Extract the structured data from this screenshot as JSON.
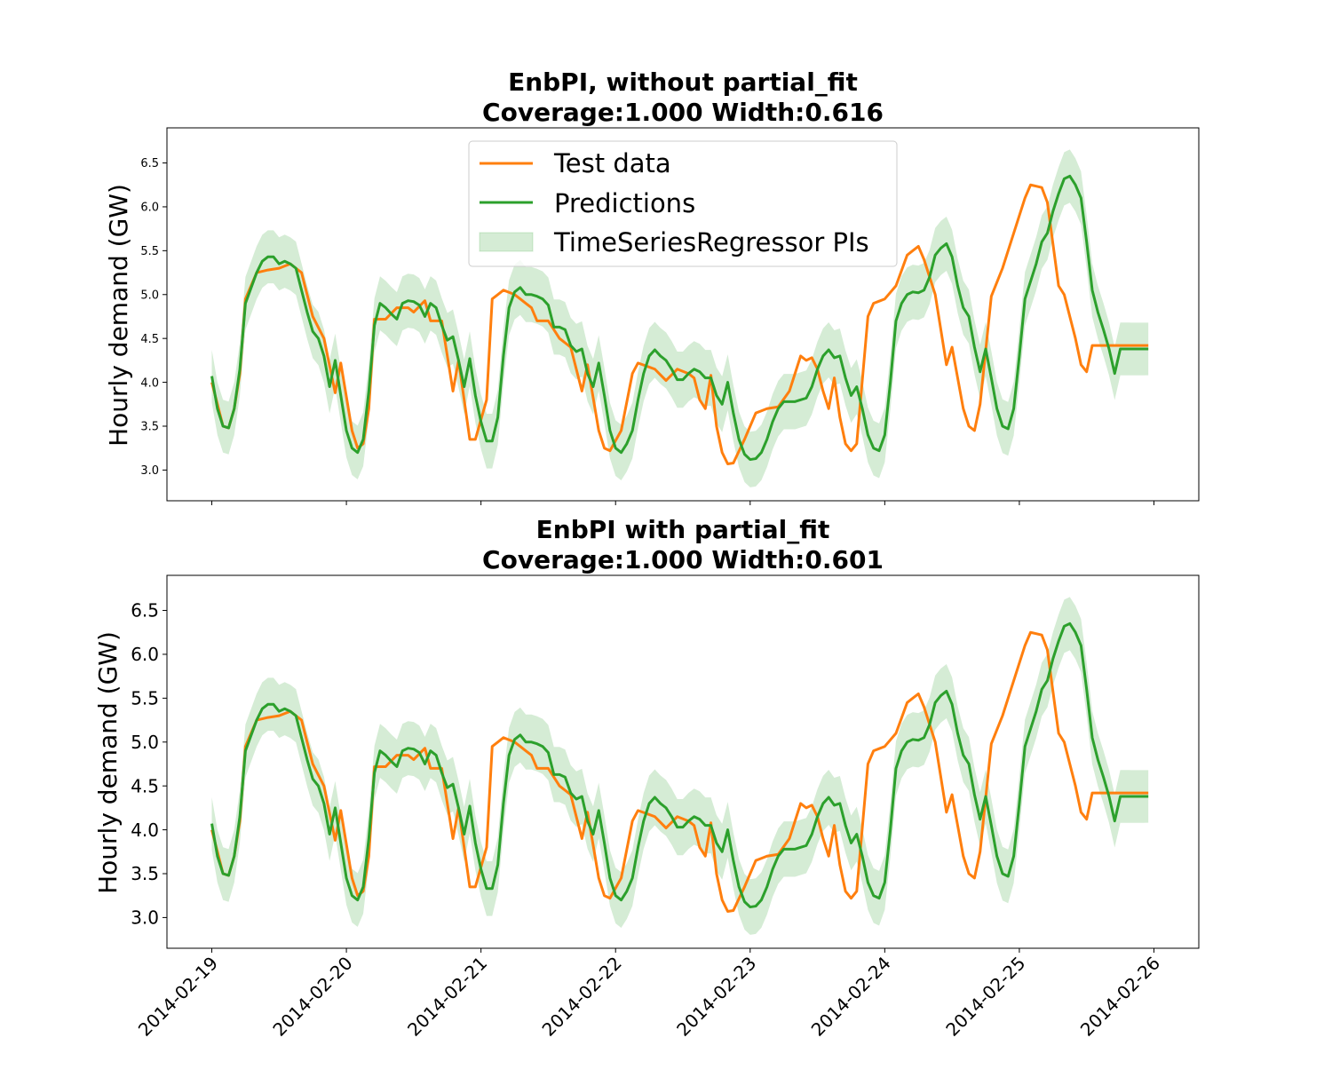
{
  "chart_data": [
    {
      "type": "line",
      "title_lines": [
        "EnbPI, without partial_fit",
        "Coverage:1.000  Width:0.616"
      ],
      "xlabel": "",
      "ylabel": "Hourly demand (GW)",
      "xlim": [
        "2014-02-18 16:00",
        "2014-02-26 08:00"
      ],
      "ylim": [
        2.65,
        6.9
      ],
      "yticks": [
        "3.0",
        "3.5",
        "4.0",
        "4.5",
        "5.0",
        "5.5",
        "6.0",
        "6.5"
      ],
      "ytick_values": [
        3.0,
        3.5,
        4.0,
        4.5,
        5.0,
        5.5,
        6.0,
        6.5
      ],
      "show_xticklabels": false,
      "legend": {
        "placement": "upper center",
        "entries": [
          "Test data",
          "Predictions",
          "TimeSeriesRegressor PIs"
        ]
      }
    },
    {
      "type": "line",
      "title_lines": [
        "EnbPI with partial_fit",
        "Coverage:1.000  Width:0.601"
      ],
      "xlabel": "",
      "ylabel": "Hourly demand (GW)",
      "xlim": [
        "2014-02-18 16:00",
        "2014-02-26 08:00"
      ],
      "ylim": [
        2.65,
        6.9
      ],
      "yticks": [
        "3.0",
        "3.5",
        "4.0",
        "4.5",
        "5.0",
        "5.5",
        "6.0",
        "6.5"
      ],
      "ytick_values": [
        3.0,
        3.5,
        4.0,
        4.5,
        5.0,
        5.5,
        6.0,
        6.5
      ],
      "xticks": [
        "2014-02-19",
        "2014-02-20",
        "2014-02-21",
        "2014-02-22",
        "2014-02-23",
        "2014-02-24",
        "2014-02-25",
        "2014-02-26"
      ],
      "show_xticklabels": true
    }
  ],
  "series_time": {
    "start": "2014-02-19 00:00",
    "end": "2014-02-25 23:00",
    "step_hours": 1
  },
  "colors": {
    "test_data": "#ff7f0e",
    "predictions": "#2ca02c",
    "interval_fill": "#2ca02c",
    "interval_alpha": 0.2
  },
  "series": {
    "test_data_anchors": [
      [
        "2014-02-19 00:00",
        4.0
      ],
      [
        "2014-02-19 02:00",
        3.5
      ],
      [
        "2014-02-19 03:00",
        3.48
      ],
      [
        "2014-02-19 04:00",
        3.7
      ],
      [
        "2014-02-19 05:00",
        4.1
      ],
      [
        "2014-02-19 06:00",
        4.95
      ],
      [
        "2014-02-19 08:00",
        5.25
      ],
      [
        "2014-02-19 10:00",
        5.28
      ],
      [
        "2014-02-19 12:00",
        5.3
      ],
      [
        "2014-02-19 14:00",
        5.35
      ],
      [
        "2014-02-19 16:00",
        5.25
      ],
      [
        "2014-02-19 18:00",
        4.75
      ],
      [
        "2014-02-19 20:00",
        4.5
      ],
      [
        "2014-02-19 22:00",
        3.88
      ],
      [
        "2014-02-19 23:00",
        4.22
      ],
      [
        "2014-02-20 01:00",
        3.45
      ],
      [
        "2014-02-20 02:00",
        3.25
      ],
      [
        "2014-02-20 03:00",
        3.3
      ],
      [
        "2014-02-20 04:00",
        3.7
      ],
      [
        "2014-02-20 05:00",
        4.72
      ],
      [
        "2014-02-20 07:00",
        4.72
      ],
      [
        "2014-02-20 09:00",
        4.85
      ],
      [
        "2014-02-20 11:00",
        4.85
      ],
      [
        "2014-02-20 12:00",
        4.8
      ],
      [
        "2014-02-20 14:00",
        4.93
      ],
      [
        "2014-02-20 15:00",
        4.7
      ],
      [
        "2014-02-20 17:00",
        4.7
      ],
      [
        "2014-02-20 19:00",
        3.9
      ],
      [
        "2014-02-20 20:00",
        4.25
      ],
      [
        "2014-02-20 22:00",
        3.35
      ],
      [
        "2014-02-20 23:00",
        3.35
      ],
      [
        "2014-02-21 01:00",
        3.8
      ],
      [
        "2014-02-21 02:00",
        4.95
      ],
      [
        "2014-02-21 04:00",
        5.05
      ],
      [
        "2014-02-21 06:00",
        5.0
      ],
      [
        "2014-02-21 09:00",
        4.85
      ],
      [
        "2014-02-21 10:00",
        4.7
      ],
      [
        "2014-02-21 12:00",
        4.7
      ],
      [
        "2014-02-21 14:00",
        4.5
      ],
      [
        "2014-02-21 16:00",
        4.4
      ],
      [
        "2014-02-21 18:00",
        3.9
      ],
      [
        "2014-02-21 19:00",
        4.2
      ],
      [
        "2014-02-21 21:00",
        3.45
      ],
      [
        "2014-02-21 22:00",
        3.25
      ],
      [
        "2014-02-21 23:00",
        3.22
      ],
      [
        "2014-02-22 01:00",
        3.45
      ],
      [
        "2014-02-22 03:00",
        4.1
      ],
      [
        "2014-02-22 04:00",
        4.22
      ],
      [
        "2014-02-22 07:00",
        4.15
      ],
      [
        "2014-02-22 09:00",
        4.02
      ],
      [
        "2014-02-22 11:00",
        4.15
      ],
      [
        "2014-02-22 13:00",
        4.1
      ],
      [
        "2014-02-22 14:00",
        4.05
      ],
      [
        "2014-02-22 15:00",
        3.8
      ],
      [
        "2014-02-22 16:00",
        3.7
      ],
      [
        "2014-02-22 17:00",
        4.08
      ],
      [
        "2014-02-22 18:00",
        3.5
      ],
      [
        "2014-02-22 19:00",
        3.2
      ],
      [
        "2014-02-22 20:00",
        3.07
      ],
      [
        "2014-02-22 21:00",
        3.08
      ],
      [
        "2014-02-22 23:00",
        3.35
      ],
      [
        "2014-02-23 01:00",
        3.65
      ],
      [
        "2014-02-23 03:00",
        3.7
      ],
      [
        "2014-02-23 05:00",
        3.72
      ],
      [
        "2014-02-23 07:00",
        3.9
      ],
      [
        "2014-02-23 09:00",
        4.3
      ],
      [
        "2014-02-23 10:00",
        4.25
      ],
      [
        "2014-02-23 11:00",
        4.28
      ],
      [
        "2014-02-23 12:00",
        4.15
      ],
      [
        "2014-02-23 13:00",
        3.9
      ],
      [
        "2014-02-23 14:00",
        3.7
      ],
      [
        "2014-02-23 15:00",
        4.05
      ],
      [
        "2014-02-23 16:00",
        3.6
      ],
      [
        "2014-02-23 17:00",
        3.3
      ],
      [
        "2014-02-23 18:00",
        3.22
      ],
      [
        "2014-02-23 19:00",
        3.3
      ],
      [
        "2014-02-23 21:00",
        4.75
      ],
      [
        "2014-02-23 22:00",
        4.9
      ],
      [
        "2014-02-24 00:00",
        4.95
      ],
      [
        "2014-02-24 02:00",
        5.1
      ],
      [
        "2014-02-24 04:00",
        5.45
      ],
      [
        "2014-02-24 06:00",
        5.55
      ],
      [
        "2014-02-24 07:00",
        5.4
      ],
      [
        "2014-02-24 09:00",
        5.0
      ],
      [
        "2014-02-24 11:00",
        4.2
      ],
      [
        "2014-02-24 12:00",
        4.4
      ],
      [
        "2014-02-24 14:00",
        3.7
      ],
      [
        "2014-02-24 15:00",
        3.5
      ],
      [
        "2014-02-24 16:00",
        3.45
      ],
      [
        "2014-02-24 17:00",
        3.75
      ],
      [
        "2014-02-24 19:00",
        4.98
      ],
      [
        "2014-02-24 21:00",
        5.3
      ],
      [
        "2014-02-24 23:00",
        5.7
      ],
      [
        "2014-02-25 01:00",
        6.1
      ],
      [
        "2014-02-25 02:00",
        6.25
      ],
      [
        "2014-02-25 04:00",
        6.22
      ],
      [
        "2014-02-25 05:00",
        6.05
      ],
      [
        "2014-02-25 07:00",
        5.1
      ],
      [
        "2014-02-25 08:00",
        5.0
      ],
      [
        "2014-02-25 10:00",
        4.5
      ],
      [
        "2014-02-25 11:00",
        4.2
      ],
      [
        "2014-02-25 12:00",
        4.12
      ],
      [
        "2014-02-25 13:00",
        4.42
      ]
    ],
    "predictions_anchors": [
      [
        "2014-02-19 00:00",
        4.07
      ],
      [
        "2014-02-19 01:00",
        3.7
      ],
      [
        "2014-02-19 02:00",
        3.5
      ],
      [
        "2014-02-19 03:00",
        3.48
      ],
      [
        "2014-02-19 04:00",
        3.7
      ],
      [
        "2014-02-19 05:00",
        4.15
      ],
      [
        "2014-02-19 06:00",
        4.9
      ],
      [
        "2014-02-19 08:00",
        5.25
      ],
      [
        "2014-02-19 09:00",
        5.38
      ],
      [
        "2014-02-19 10:00",
        5.43
      ],
      [
        "2014-02-19 11:00",
        5.43
      ],
      [
        "2014-02-19 12:00",
        5.35
      ],
      [
        "2014-02-19 13:00",
        5.38
      ],
      [
        "2014-02-19 14:00",
        5.35
      ],
      [
        "2014-02-19 15:00",
        5.3
      ],
      [
        "2014-02-19 16:00",
        5.05
      ],
      [
        "2014-02-19 17:00",
        4.8
      ],
      [
        "2014-02-19 18:00",
        4.58
      ],
      [
        "2014-02-19 19:00",
        4.5
      ],
      [
        "2014-02-19 20:00",
        4.3
      ],
      [
        "2014-02-19 21:00",
        3.95
      ],
      [
        "2014-02-19 22:00",
        4.25
      ],
      [
        "2014-02-19 23:00",
        3.85
      ],
      [
        "2014-02-20 00:00",
        3.45
      ],
      [
        "2014-02-20 01:00",
        3.25
      ],
      [
        "2014-02-20 02:00",
        3.2
      ],
      [
        "2014-02-20 03:00",
        3.35
      ],
      [
        "2014-02-20 04:00",
        3.9
      ],
      [
        "2014-02-20 05:00",
        4.65
      ],
      [
        "2014-02-20 06:00",
        4.9
      ],
      [
        "2014-02-20 07:00",
        4.85
      ],
      [
        "2014-02-20 08:00",
        4.78
      ],
      [
        "2014-02-20 09:00",
        4.72
      ],
      [
        "2014-02-20 10:00",
        4.9
      ],
      [
        "2014-02-20 11:00",
        4.93
      ],
      [
        "2014-02-20 12:00",
        4.92
      ],
      [
        "2014-02-20 13:00",
        4.88
      ],
      [
        "2014-02-20 14:00",
        4.75
      ],
      [
        "2014-02-20 15:00",
        4.9
      ],
      [
        "2014-02-20 16:00",
        4.85
      ],
      [
        "2014-02-20 17:00",
        4.65
      ],
      [
        "2014-02-20 18:00",
        4.48
      ],
      [
        "2014-02-20 19:00",
        4.52
      ],
      [
        "2014-02-20 20:00",
        4.25
      ],
      [
        "2014-02-20 21:00",
        3.95
      ],
      [
        "2014-02-20 22:00",
        4.27
      ],
      [
        "2014-02-20 23:00",
        3.85
      ],
      [
        "2014-02-21 00:00",
        3.55
      ],
      [
        "2014-02-21 01:00",
        3.33
      ],
      [
        "2014-02-21 02:00",
        3.33
      ],
      [
        "2014-02-21 03:00",
        3.6
      ],
      [
        "2014-02-21 04:00",
        4.3
      ],
      [
        "2014-02-21 05:00",
        4.85
      ],
      [
        "2014-02-21 06:00",
        5.03
      ],
      [
        "2014-02-21 07:00",
        5.08
      ],
      [
        "2014-02-21 08:00",
        5.0
      ],
      [
        "2014-02-21 09:00",
        5.0
      ],
      [
        "2014-02-21 10:00",
        4.98
      ],
      [
        "2014-02-21 11:00",
        4.95
      ],
      [
        "2014-02-21 12:00",
        4.88
      ],
      [
        "2014-02-21 13:00",
        4.63
      ],
      [
        "2014-02-21 14:00",
        4.63
      ],
      [
        "2014-02-21 15:00",
        4.6
      ],
      [
        "2014-02-21 16:00",
        4.42
      ],
      [
        "2014-02-21 17:00",
        4.35
      ],
      [
        "2014-02-21 18:00",
        4.38
      ],
      [
        "2014-02-21 19:00",
        4.1
      ],
      [
        "2014-02-21 20:00",
        3.95
      ],
      [
        "2014-02-21 21:00",
        4.22
      ],
      [
        "2014-02-21 22:00",
        3.85
      ],
      [
        "2014-02-21 23:00",
        3.45
      ],
      [
        "2014-02-22 00:00",
        3.25
      ],
      [
        "2014-02-22 01:00",
        3.2
      ],
      [
        "2014-02-22 02:00",
        3.3
      ],
      [
        "2014-02-22 03:00",
        3.45
      ],
      [
        "2014-02-22 04:00",
        3.8
      ],
      [
        "2014-02-22 05:00",
        4.1
      ],
      [
        "2014-02-22 06:00",
        4.3
      ],
      [
        "2014-02-22 07:00",
        4.37
      ],
      [
        "2014-02-22 08:00",
        4.3
      ],
      [
        "2014-02-22 09:00",
        4.25
      ],
      [
        "2014-02-22 10:00",
        4.15
      ],
      [
        "2014-02-22 11:00",
        4.03
      ],
      [
        "2014-02-22 12:00",
        4.03
      ],
      [
        "2014-02-22 13:00",
        4.1
      ],
      [
        "2014-02-22 14:00",
        4.15
      ],
      [
        "2014-02-22 15:00",
        4.12
      ],
      [
        "2014-02-22 16:00",
        4.05
      ],
      [
        "2014-02-22 17:00",
        4.05
      ],
      [
        "2014-02-22 18:00",
        3.85
      ],
      [
        "2014-02-22 19:00",
        3.75
      ],
      [
        "2014-02-22 20:00",
        4.0
      ],
      [
        "2014-02-22 21:00",
        3.65
      ],
      [
        "2014-02-22 22:00",
        3.35
      ],
      [
        "2014-02-22 23:00",
        3.18
      ],
      [
        "2014-02-23 00:00",
        3.12
      ],
      [
        "2014-02-23 01:00",
        3.13
      ],
      [
        "2014-02-23 02:00",
        3.2
      ],
      [
        "2014-02-23 03:00",
        3.35
      ],
      [
        "2014-02-23 04:00",
        3.55
      ],
      [
        "2014-02-23 05:00",
        3.7
      ],
      [
        "2014-02-23 06:00",
        3.78
      ],
      [
        "2014-02-23 07:00",
        3.78
      ],
      [
        "2014-02-23 08:00",
        3.78
      ],
      [
        "2014-02-23 09:00",
        3.8
      ],
      [
        "2014-02-23 10:00",
        3.82
      ],
      [
        "2014-02-23 11:00",
        3.95
      ],
      [
        "2014-02-23 12:00",
        4.15
      ],
      [
        "2014-02-23 13:00",
        4.3
      ],
      [
        "2014-02-23 14:00",
        4.37
      ],
      [
        "2014-02-23 15:00",
        4.28
      ],
      [
        "2014-02-23 16:00",
        4.3
      ],
      [
        "2014-02-23 17:00",
        4.05
      ],
      [
        "2014-02-23 18:00",
        3.85
      ],
      [
        "2014-02-23 19:00",
        3.95
      ],
      [
        "2014-02-23 20:00",
        3.7
      ],
      [
        "2014-02-23 21:00",
        3.4
      ],
      [
        "2014-02-23 22:00",
        3.25
      ],
      [
        "2014-02-23 23:00",
        3.22
      ],
      [
        "2014-02-24 00:00",
        3.4
      ],
      [
        "2014-02-24 01:00",
        4.0
      ],
      [
        "2014-02-24 02:00",
        4.7
      ],
      [
        "2014-02-24 03:00",
        4.9
      ],
      [
        "2014-02-24 04:00",
        5.0
      ],
      [
        "2014-02-24 05:00",
        5.03
      ],
      [
        "2014-02-24 06:00",
        5.02
      ],
      [
        "2014-02-24 07:00",
        5.05
      ],
      [
        "2014-02-24 08:00",
        5.2
      ],
      [
        "2014-02-24 09:00",
        5.45
      ],
      [
        "2014-02-24 10:00",
        5.53
      ],
      [
        "2014-02-24 11:00",
        5.58
      ],
      [
        "2014-02-24 12:00",
        5.43
      ],
      [
        "2014-02-24 13:00",
        5.1
      ],
      [
        "2014-02-24 14:00",
        4.85
      ],
      [
        "2014-02-24 15:00",
        4.75
      ],
      [
        "2014-02-24 16:00",
        4.4
      ],
      [
        "2014-02-24 17:00",
        4.12
      ],
      [
        "2014-02-24 18:00",
        4.38
      ],
      [
        "2014-02-24 19:00",
        4.05
      ],
      [
        "2014-02-24 20:00",
        3.7
      ],
      [
        "2014-02-24 21:00",
        3.5
      ],
      [
        "2014-02-24 22:00",
        3.47
      ],
      [
        "2014-02-24 23:00",
        3.7
      ],
      [
        "2014-02-25 00:00",
        4.3
      ],
      [
        "2014-02-25 01:00",
        4.95
      ],
      [
        "2014-02-25 02:00",
        5.15
      ],
      [
        "2014-02-25 03:00",
        5.35
      ],
      [
        "2014-02-25 04:00",
        5.6
      ],
      [
        "2014-02-25 05:00",
        5.7
      ],
      [
        "2014-02-25 06:00",
        5.95
      ],
      [
        "2014-02-25 07:00",
        6.15
      ],
      [
        "2014-02-25 08:00",
        6.32
      ],
      [
        "2014-02-25 09:00",
        6.35
      ],
      [
        "2014-02-25 10:00",
        6.25
      ],
      [
        "2014-02-25 11:00",
        6.1
      ],
      [
        "2014-02-25 12:00",
        5.6
      ],
      [
        "2014-02-25 13:00",
        5.05
      ],
      [
        "2014-02-25 14:00",
        4.8
      ],
      [
        "2014-02-25 15:00",
        4.6
      ],
      [
        "2014-02-25 16:00",
        4.38
      ],
      [
        "2014-02-25 17:00",
        4.1
      ],
      [
        "2014-02-25 18:00",
        4.38
      ]
    ],
    "interval_half_width": [
      0.3,
      0.32,
      0.3
    ]
  }
}
